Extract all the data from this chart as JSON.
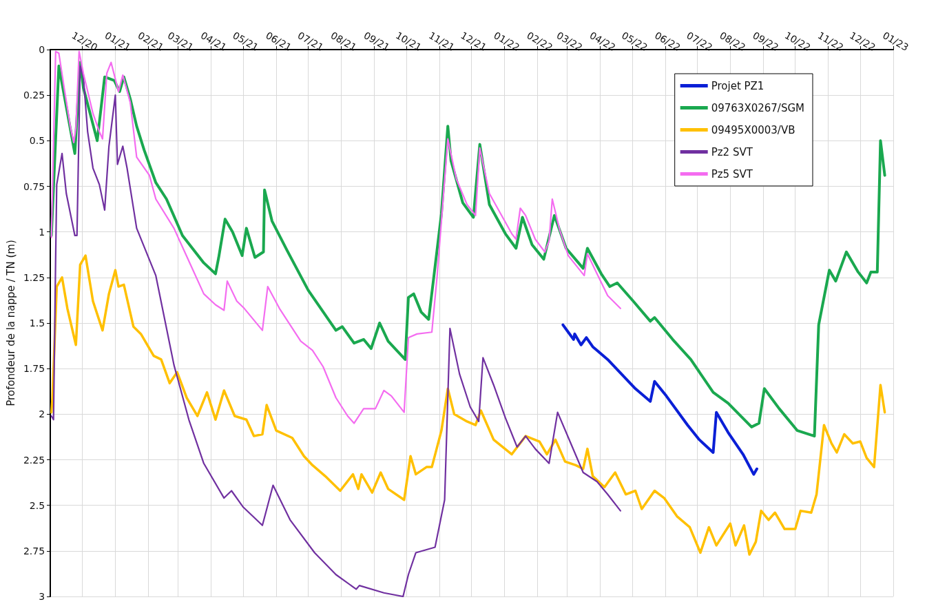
{
  "chart_data": {
    "type": "line",
    "ylabel": "Profondeur de la nappe / TN (m)",
    "xlim": [
      "2020-11-01",
      "2023-01-01"
    ],
    "xticks": [
      {
        "value": "2020-12-01",
        "label": "12/20"
      },
      {
        "value": "2021-01-01",
        "label": "01/21"
      },
      {
        "value": "2021-02-01",
        "label": "02/21"
      },
      {
        "value": "2021-03-01",
        "label": "03/21"
      },
      {
        "value": "2021-04-01",
        "label": "04/21"
      },
      {
        "value": "2021-05-01",
        "label": "05/21"
      },
      {
        "value": "2021-06-01",
        "label": "06/21"
      },
      {
        "value": "2021-07-01",
        "label": "07/21"
      },
      {
        "value": "2021-08-01",
        "label": "08/21"
      },
      {
        "value": "2021-09-01",
        "label": "09/21"
      },
      {
        "value": "2021-10-01",
        "label": "10/21"
      },
      {
        "value": "2021-11-01",
        "label": "11/21"
      },
      {
        "value": "2021-12-01",
        "label": "12/21"
      },
      {
        "value": "2022-01-01",
        "label": "01/22"
      },
      {
        "value": "2022-02-01",
        "label": "02/22"
      },
      {
        "value": "2022-03-01",
        "label": "03/22"
      },
      {
        "value": "2022-04-01",
        "label": "04/22"
      },
      {
        "value": "2022-05-01",
        "label": "05/22"
      },
      {
        "value": "2022-06-01",
        "label": "06/22"
      },
      {
        "value": "2022-07-01",
        "label": "07/22"
      },
      {
        "value": "2022-08-01",
        "label": "08/22"
      },
      {
        "value": "2022-09-01",
        "label": "09/22"
      },
      {
        "value": "2022-10-01",
        "label": "10/22"
      },
      {
        "value": "2022-11-01",
        "label": "11/22"
      },
      {
        "value": "2022-12-01",
        "label": "12/22"
      },
      {
        "value": "2023-01-01",
        "label": "01/23"
      }
    ],
    "ylim": [
      3,
      0
    ],
    "yticks": [
      0,
      0.25,
      0.5,
      0.75,
      1,
      1.25,
      1.5,
      1.75,
      2,
      2.25,
      2.5,
      2.75,
      3
    ],
    "grid": true,
    "legend": "top right",
    "marker": "none",
    "line_style": "solid",
    "series": [
      {
        "name": "Projet PZ1",
        "color": "#0a1fd6",
        "x": [
          "2022-02-25",
          "2022-03-02",
          "2022-03-07",
          "2022-03-08",
          "2022-03-14",
          "2022-03-19",
          "2022-03-25",
          "2022-04-08",
          "2022-04-21",
          "2022-05-04",
          "2022-05-18",
          "2022-05-22",
          "2022-06-02",
          "2022-06-22",
          "2022-07-03",
          "2022-07-16",
          "2022-07-19",
          "2022-07-30",
          "2022-08-13",
          "2022-08-23",
          "2022-08-26"
        ],
        "values": [
          1.51,
          1.55,
          1.59,
          1.56,
          1.62,
          1.58,
          1.63,
          1.7,
          1.78,
          1.86,
          1.93,
          1.82,
          1.9,
          2.06,
          2.14,
          2.21,
          1.99,
          2.1,
          2.22,
          2.33,
          2.3
        ]
      },
      {
        "name": "09763X0267/SGM",
        "color": "#1aa84f",
        "x": [
          "2020-11-02",
          "2020-11-09",
          "2020-11-24",
          "2020-11-29",
          "2020-12-02",
          "2020-12-11",
          "2020-12-15",
          "2020-12-22",
          "2020-12-31",
          "2021-01-05",
          "2021-01-09",
          "2021-01-15",
          "2021-01-21",
          "2021-01-28",
          "2021-02-08",
          "2021-02-18",
          "2021-03-05",
          "2021-03-25",
          "2021-04-05",
          "2021-04-08",
          "2021-04-14",
          "2021-04-21",
          "2021-04-30",
          "2021-05-04",
          "2021-05-12",
          "2021-05-20",
          "2021-05-21",
          "2021-05-28",
          "2021-06-11",
          "2021-07-01",
          "2021-07-27",
          "2021-08-02",
          "2021-08-13",
          "2021-08-22",
          "2021-08-29",
          "2021-09-06",
          "2021-09-14",
          "2021-09-30",
          "2021-10-03",
          "2021-10-08",
          "2021-10-15",
          "2021-10-22",
          "2021-10-27",
          "2021-11-03",
          "2021-11-09",
          "2021-11-12",
          "2021-11-23",
          "2021-12-03",
          "2021-12-09",
          "2021-12-18",
          "2022-01-02",
          "2022-01-12",
          "2022-01-18",
          "2022-01-27",
          "2022-02-07",
          "2022-02-17",
          "2022-02-28",
          "2022-03-16",
          "2022-03-20",
          "2022-04-02",
          "2022-04-10",
          "2022-04-17",
          "2022-05-02",
          "2022-05-18",
          "2022-05-22",
          "2022-06-08",
          "2022-06-25",
          "2022-07-16",
          "2022-07-30",
          "2022-08-21",
          "2022-08-28",
          "2022-09-02",
          "2022-09-16",
          "2022-10-03",
          "2022-10-19",
          "2022-10-23",
          "2022-11-02",
          "2022-11-08",
          "2022-11-18",
          "2022-11-29",
          "2022-12-07",
          "2022-12-11",
          "2022-12-17",
          "2022-12-20",
          "2022-12-24"
        ],
        "values": [
          1.02,
          0.09,
          0.57,
          0.07,
          0.21,
          0.41,
          0.5,
          0.15,
          0.17,
          0.23,
          0.15,
          0.27,
          0.42,
          0.55,
          0.73,
          0.82,
          1.02,
          1.17,
          1.23,
          1.14,
          0.93,
          1,
          1.13,
          0.98,
          1.14,
          1.11,
          0.77,
          0.94,
          1.1,
          1.32,
          1.54,
          1.52,
          1.61,
          1.59,
          1.64,
          1.5,
          1.6,
          1.7,
          1.36,
          1.34,
          1.44,
          1.48,
          1.24,
          0.9,
          0.42,
          0.61,
          0.84,
          0.92,
          0.52,
          0.85,
          1.01,
          1.09,
          0.92,
          1.07,
          1.15,
          0.91,
          1.09,
          1.2,
          1.09,
          1.23,
          1.3,
          1.28,
          1.38,
          1.49,
          1.47,
          1.59,
          1.7,
          1.88,
          1.94,
          2.07,
          2.05,
          1.86,
          1.97,
          2.09,
          2.12,
          1.51,
          1.21,
          1.27,
          1.11,
          1.22,
          1.28,
          1.22,
          1.22,
          0.5,
          0.69
        ]
      },
      {
        "name": "09495X0003/VB",
        "color": "#ffc000",
        "x": [
          "2020-11-02",
          "2020-11-03",
          "2020-11-07",
          "2020-11-12",
          "2020-11-17",
          "2020-11-25",
          "2020-11-29",
          "2020-12-04",
          "2020-12-11",
          "2020-12-20",
          "2020-12-26",
          "2021-01-01",
          "2021-01-04",
          "2021-01-09",
          "2021-01-18",
          "2021-01-25",
          "2021-02-06",
          "2021-02-13",
          "2021-02-21",
          "2021-02-28",
          "2021-03-09",
          "2021-03-19",
          "2021-03-28",
          "2021-04-05",
          "2021-04-13",
          "2021-04-23",
          "2021-05-04",
          "2021-05-11",
          "2021-05-19",
          "2021-05-23",
          "2021-06-01",
          "2021-06-16",
          "2021-06-27",
          "2021-07-05",
          "2021-07-17",
          "2021-07-31",
          "2021-08-12",
          "2021-08-17",
          "2021-08-20",
          "2021-08-30",
          "2021-09-07",
          "2021-09-14",
          "2021-09-29",
          "2021-10-05",
          "2021-10-10",
          "2021-10-20",
          "2021-10-25",
          "2021-11-03",
          "2021-11-09",
          "2021-11-15",
          "2021-11-27",
          "2021-12-05",
          "2021-12-10",
          "2021-12-22",
          "2022-01-08",
          "2022-01-21",
          "2022-02-03",
          "2022-02-10",
          "2022-02-18",
          "2022-02-27",
          "2022-03-09",
          "2022-03-16",
          "2022-03-20",
          "2022-03-25",
          "2022-04-05",
          "2022-04-15",
          "2022-04-25",
          "2022-05-04",
          "2022-05-10",
          "2022-05-22",
          "2022-05-31",
          "2022-06-12",
          "2022-06-24",
          "2022-07-04",
          "2022-07-12",
          "2022-07-19",
          "2022-08-01",
          "2022-08-06",
          "2022-08-14",
          "2022-08-19",
          "2022-08-25",
          "2022-08-30",
          "2022-09-06",
          "2022-09-12",
          "2022-09-21",
          "2022-10-01",
          "2022-10-06",
          "2022-10-16",
          "2022-10-21",
          "2022-10-28",
          "2022-11-04",
          "2022-11-09",
          "2022-11-16",
          "2022-11-24",
          "2022-12-01",
          "2022-12-07",
          "2022-12-14",
          "2022-12-20",
          "2022-12-24"
        ],
        "values": [
          1.99,
          1.91,
          1.3,
          1.25,
          1.42,
          1.62,
          1.18,
          1.13,
          1.38,
          1.54,
          1.34,
          1.21,
          1.3,
          1.29,
          1.52,
          1.56,
          1.68,
          1.7,
          1.83,
          1.77,
          1.91,
          2.01,
          1.88,
          2.03,
          1.87,
          2.01,
          2.03,
          2.12,
          2.11,
          1.95,
          2.09,
          2.13,
          2.23,
          2.28,
          2.34,
          2.42,
          2.33,
          2.41,
          2.33,
          2.43,
          2.32,
          2.41,
          2.47,
          2.23,
          2.33,
          2.29,
          2.29,
          2.09,
          1.86,
          2,
          2.04,
          2.06,
          1.98,
          2.14,
          2.22,
          2.12,
          2.15,
          2.22,
          2.14,
          2.26,
          2.28,
          2.3,
          2.19,
          2.34,
          2.4,
          2.32,
          2.44,
          2.42,
          2.52,
          2.42,
          2.46,
          2.56,
          2.62,
          2.76,
          2.62,
          2.72,
          2.6,
          2.72,
          2.61,
          2.77,
          2.7,
          2.53,
          2.58,
          2.54,
          2.63,
          2.63,
          2.53,
          2.54,
          2.44,
          2.06,
          2.16,
          2.21,
          2.11,
          2.16,
          2.15,
          2.24,
          2.29,
          1.84,
          1.99
        ]
      },
      {
        "name": "Pz2 SVT",
        "color": "#7030a0",
        "x": [
          "2020-11-02",
          "2020-11-04",
          "2020-11-06",
          "2020-11-07",
          "2020-11-12",
          "2020-11-16",
          "2020-11-24",
          "2020-11-26",
          "2020-11-29",
          "2020-12-02",
          "2020-12-06",
          "2020-12-11",
          "2020-12-17",
          "2020-12-22",
          "2020-12-26",
          "2021-01-01",
          "2021-01-03",
          "2021-01-08",
          "2021-01-12",
          "2021-01-21",
          "2021-02-08",
          "2021-02-25",
          "2021-03-11",
          "2021-03-25",
          "2021-04-13",
          "2021-04-20",
          "2021-05-01",
          "2021-05-19",
          "2021-05-29",
          "2021-06-14",
          "2021-07-07",
          "2021-07-27",
          "2021-08-15",
          "2021-08-18",
          "2021-09-10",
          "2021-09-28",
          "2021-10-03",
          "2021-10-10",
          "2021-10-28",
          "2021-11-06",
          "2021-11-11",
          "2021-11-20",
          "2021-11-30",
          "2021-12-08",
          "2021-12-12",
          "2021-12-22",
          "2022-01-02",
          "2022-01-13",
          "2022-01-21",
          "2022-01-30",
          "2022-02-12",
          "2022-02-20",
          "2022-02-28",
          "2022-03-16",
          "2022-03-29",
          "2022-04-08",
          "2022-04-20"
        ],
        "values": [
          2.01,
          2.03,
          1.14,
          0.74,
          0.57,
          0.79,
          1.02,
          1.02,
          0.09,
          0.15,
          0.45,
          0.65,
          0.74,
          0.88,
          0.53,
          0.25,
          0.63,
          0.53,
          0.65,
          0.98,
          1.24,
          1.73,
          2.03,
          2.27,
          2.46,
          2.42,
          2.51,
          2.61,
          2.39,
          2.58,
          2.76,
          2.88,
          2.96,
          2.94,
          2.98,
          3,
          2.88,
          2.76,
          2.73,
          2.47,
          1.53,
          1.78,
          1.96,
          2.04,
          1.69,
          1.84,
          2.02,
          2.18,
          2.12,
          2.19,
          2.27,
          1.99,
          2.1,
          2.32,
          2.37,
          2.44,
          2.53
        ]
      },
      {
        "name": "Pz5 SVT",
        "color": "#f46cf0",
        "x": [
          "2020-11-02",
          "2020-11-06",
          "2020-11-09",
          "2020-11-14",
          "2020-11-20",
          "2020-11-23",
          "2020-11-25",
          "2020-11-28",
          "2020-12-02",
          "2020-12-11",
          "2020-12-17",
          "2020-12-20",
          "2020-12-24",
          "2020-12-28",
          "2021-01-04",
          "2021-01-08",
          "2021-01-15",
          "2021-01-21",
          "2021-02-02",
          "2021-02-08",
          "2021-02-25",
          "2021-03-11",
          "2021-03-25",
          "2021-04-05",
          "2021-04-13",
          "2021-04-16",
          "2021-04-25",
          "2021-05-02",
          "2021-05-19",
          "2021-05-24",
          "2021-06-04",
          "2021-06-24",
          "2021-07-05",
          "2021-07-15",
          "2021-07-27",
          "2021-08-07",
          "2021-08-13",
          "2021-08-22",
          "2021-09-02",
          "2021-09-10",
          "2021-09-17",
          "2021-09-29",
          "2021-10-03",
          "2021-10-11",
          "2021-10-25",
          "2021-10-30",
          "2021-11-09",
          "2021-11-17",
          "2021-11-27",
          "2021-12-05",
          "2021-12-09",
          "2021-12-18",
          "2022-01-08",
          "2022-01-12",
          "2022-01-16",
          "2022-01-21",
          "2022-01-30",
          "2022-02-08",
          "2022-02-12",
          "2022-02-15",
          "2022-02-22",
          "2022-03-02",
          "2022-03-17",
          "2022-03-20",
          "2022-03-29",
          "2022-04-08",
          "2022-04-20"
        ],
        "values": [
          1.03,
          0.01,
          0.02,
          0.21,
          0.43,
          0.51,
          0.43,
          0.01,
          0.13,
          0.35,
          0.45,
          0.49,
          0.13,
          0.07,
          0.23,
          0.14,
          0.29,
          0.59,
          0.69,
          0.82,
          0.98,
          1.16,
          1.34,
          1.4,
          1.43,
          1.27,
          1.38,
          1.42,
          1.54,
          1.3,
          1.42,
          1.6,
          1.65,
          1.74,
          1.91,
          2.01,
          2.05,
          1.97,
          1.97,
          1.87,
          1.9,
          1.99,
          1.58,
          1.56,
          1.55,
          1.24,
          0.49,
          0.71,
          0.85,
          0.91,
          0.54,
          0.79,
          1.01,
          1.04,
          0.87,
          0.91,
          1.04,
          1.11,
          1.05,
          0.82,
          0.99,
          1.13,
          1.24,
          1.12,
          1.23,
          1.35,
          1.42
        ]
      }
    ]
  }
}
